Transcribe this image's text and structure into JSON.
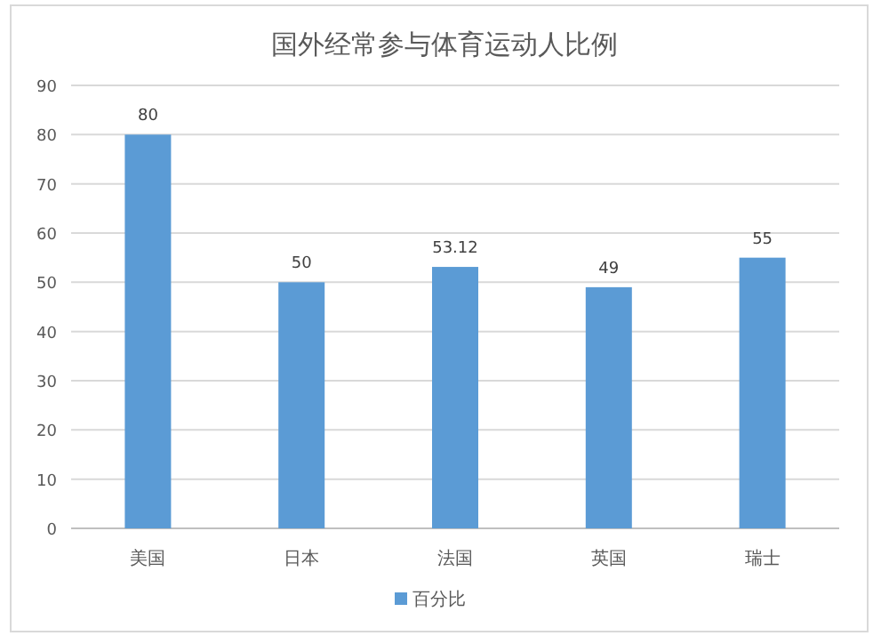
{
  "chart_data": {
    "type": "bar",
    "title": "国外经常参与体育运动人比例",
    "categories": [
      "美国",
      "日本",
      "法国",
      "英国",
      "瑞士"
    ],
    "series": [
      {
        "name": "百分比",
        "color": "#5b9bd5",
        "values": [
          80,
          50,
          53.12,
          49,
          55
        ]
      }
    ],
    "ylim": [
      0,
      90
    ],
    "yticks": [
      0,
      10,
      20,
      30,
      40,
      50,
      60,
      70,
      80,
      90
    ],
    "grid": "y",
    "data_labels": true,
    "legend": "bottom"
  }
}
